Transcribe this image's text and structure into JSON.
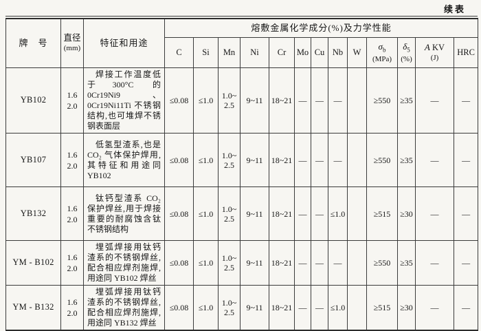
{
  "page": {
    "continued_label": "续表"
  },
  "table": {
    "headers": {
      "brand": "牌　号",
      "diameter_line1": "直径",
      "diameter_line2": "(mm)",
      "use": "特征和用途",
      "group": "熔敷金属化学成分(%)及力学性能",
      "cols": [
        "C",
        "Si",
        "Mn",
        "Ni",
        "Cr",
        "Mo",
        "Cu",
        "Nb",
        "W"
      ],
      "sigma": {
        "sym": "σ",
        "sub": "b",
        "unit": "(MPa)"
      },
      "delta": {
        "sym": "δ",
        "sub": "5",
        "unit": "(%)"
      },
      "akv": {
        "a": "A",
        "kv": "KV",
        "unit": "(J)"
      },
      "hrc": "HRC"
    },
    "rows": [
      {
        "brand": "YB102",
        "diameter": "1.6\n2.0",
        "use": "焊接工作温度低于300°C 的 0Cr19Ni9、0Cr19Ni11Ti 不锈钢结构,也可堆焊不锈钢表面层",
        "values": [
          "≤0.08",
          "≤1.0",
          "1.0~\n2.5",
          "9~11",
          "18~21",
          "—",
          "—",
          "—",
          "",
          "≥550",
          "≥35",
          "—",
          "—"
        ]
      },
      {
        "brand": "YB107",
        "diameter": "1.6\n2.0",
        "use": "低氢型渣系,也是CO₂ 气体保护焊用,其特征和用途同YB102",
        "values": [
          "≤0.08",
          "≤1.0",
          "1.0~\n2.5",
          "9~11",
          "18~21",
          "—",
          "—",
          "—",
          "",
          "≥550",
          "≥35",
          "—",
          "—"
        ]
      },
      {
        "brand": "YB132",
        "diameter": "1.6\n2.0",
        "use": "钛钙型渣系 CO₂ 保护焊丝,用于焊接重要的耐腐蚀含钛不锈钢结构",
        "values": [
          "≤0.08",
          "≤1.0",
          "1.0~\n2.5",
          "9~11",
          "18~21",
          "—",
          "—",
          "≤1.0",
          "",
          "≥515",
          "≥30",
          "—",
          "—"
        ]
      },
      {
        "brand": "YM - B102",
        "diameter": "1.6\n2.0",
        "use": "埋弧焊接用钛钙渣系的不锈钢焊丝,配合相应焊剂施焊,用途同 YB102 焊丝",
        "values": [
          "≤0.08",
          "≤1.0",
          "1.0~\n2.5",
          "9~11",
          "18~21",
          "—",
          "—",
          "—",
          "",
          "≥550",
          "≥35",
          "—",
          "—"
        ]
      },
      {
        "brand": "YM - B132",
        "diameter": "1.6\n2.0",
        "use": "埋弧焊接用钛钙渣系的不锈钢焊丝,配合相应焊剂施焊,用途同 YB132 焊丝",
        "values": [
          "≤0.08",
          "≤1.0",
          "1.0~\n2.5",
          "9~11",
          "18~21",
          "—",
          "—",
          "≤1.0",
          "",
          "≥515",
          "≥30",
          "—",
          "—"
        ]
      }
    ]
  }
}
